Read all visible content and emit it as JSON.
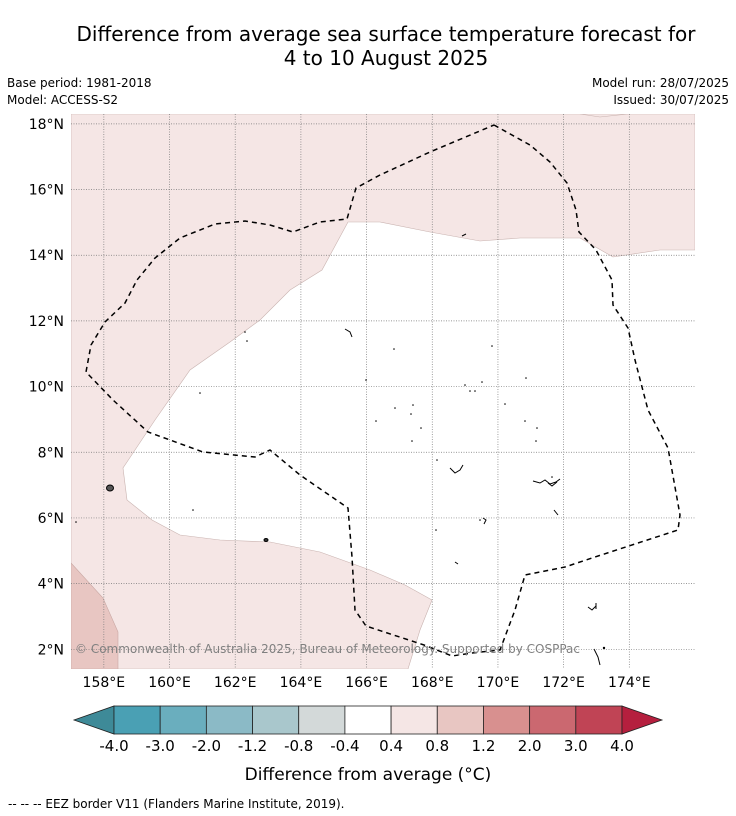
{
  "title": {
    "line1": "Difference from average sea surface temperature forecast for",
    "line2": "4 to 10 August 2025"
  },
  "meta": {
    "base_period": "Base period: 1981-2018",
    "model": "Model: ACCESS-S2",
    "model_run": "Model run: 28/07/2025",
    "issued": "Issued: 30/07/2025"
  },
  "map": {
    "lon_range": [
      157,
      176
    ],
    "lat_range": [
      1.4,
      18.3
    ],
    "lon_ticks": [
      "158°E",
      "160°E",
      "162°E",
      "164°E",
      "166°E",
      "168°E",
      "170°E",
      "172°E",
      "174°E"
    ],
    "lat_ticks": [
      "2°N",
      "4°N",
      "6°N",
      "8°N",
      "10°N",
      "12°N",
      "14°N",
      "16°N",
      "18°N"
    ],
    "lon_values": [
      158,
      160,
      162,
      164,
      166,
      168,
      170,
      172,
      174
    ],
    "lat_values": [
      2,
      4,
      6,
      8,
      10,
      12,
      14,
      16,
      18
    ],
    "gridlines": true,
    "copyright": "© Commonwealth of Australia 2025, Bureau of Meteorology. Supported by COSPPac",
    "shading": [
      {
        "class": "0.4 to 0.8",
        "color": "#f5e6e5"
      },
      {
        "class": "0.8 to 1.2",
        "color": "#e8c6c2"
      },
      {
        "class": "-0.4 to 0.4",
        "color": "#ffffff"
      }
    ]
  },
  "colorbar": {
    "label": "Difference from average (°C)",
    "ticks": [
      "-4.0",
      "-3.0",
      "-2.0",
      "-1.2",
      "-0.8",
      "-0.4",
      "0.4",
      "0.8",
      "1.2",
      "2.0",
      "3.0",
      "4.0"
    ],
    "colors": [
      "#4aa0b4",
      "#6aaebe",
      "#8bbac6",
      "#a9c7cc",
      "#d3d9d9",
      "#ffffff",
      "#f5e6e5",
      "#e8c6c2",
      "#d8908f",
      "#cb6870",
      "#c04455"
    ],
    "under_color": "#3e8a98",
    "over_color": "#b51f3e"
  },
  "legend_note": "--  --  -- EEZ border V11 (Flanders Marine Institute, 2019)."
}
